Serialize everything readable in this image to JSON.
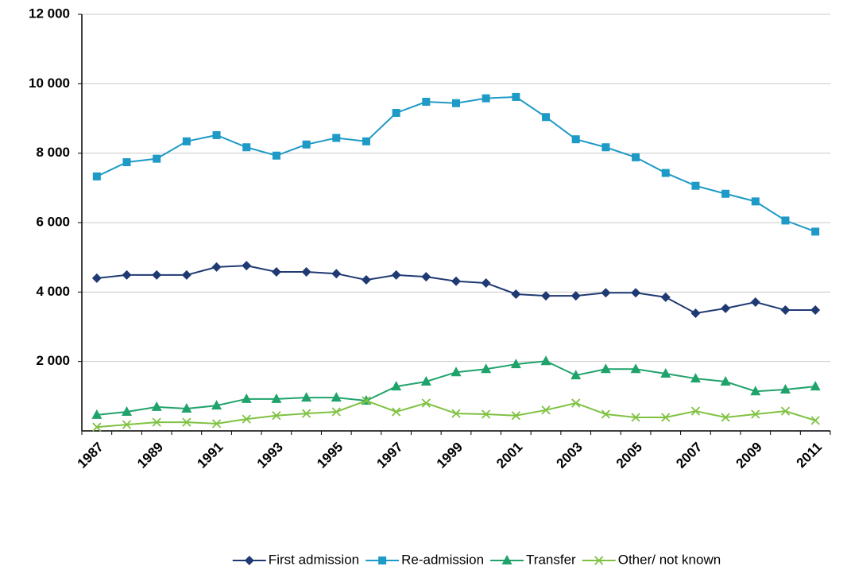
{
  "chart_data": {
    "type": "line",
    "categories": [
      "1987",
      null,
      "1989",
      null,
      "1991",
      null,
      "1993",
      null,
      "1995",
      null,
      "1997",
      null,
      "1999",
      null,
      "2001",
      null,
      "2003",
      null,
      "2005",
      null,
      "2007",
      null,
      "2009",
      null,
      "2011"
    ],
    "ylim": [
      0,
      12000
    ],
    "yticks": [
      {
        "value": 2000,
        "label": "2 000"
      },
      {
        "value": 4000,
        "label": "4 000"
      },
      {
        "value": 6000,
        "label": "6 000"
      },
      {
        "value": 8000,
        "label": "8 000"
      },
      {
        "value": 10000,
        "label": "10 000"
      },
      {
        "value": 12000,
        "label": "12 000"
      }
    ],
    "grid": true,
    "legend": "bottom",
    "series": [
      {
        "name": "First admission",
        "color": "#1f3a73",
        "marker": "diamond",
        "values": [
          4400,
          4490,
          4490,
          4490,
          4720,
          4760,
          4580,
          4580,
          4530,
          4350,
          4490,
          4440,
          4310,
          4260,
          3940,
          3890,
          3890,
          3980,
          3980,
          3850,
          3390,
          3530,
          3710,
          3480,
          3480
        ]
      },
      {
        "name": "Re-admission",
        "color": "#1e9ac6",
        "marker": "square",
        "values": [
          7330,
          7740,
          7840,
          8340,
          8520,
          8170,
          7930,
          8250,
          8440,
          8340,
          9160,
          9480,
          9440,
          9580,
          9620,
          9040,
          8400,
          8170,
          7880,
          7430,
          7060,
          6830,
          6610,
          6060,
          5740
        ]
      },
      {
        "name": "Transfer",
        "color": "#1fa36b",
        "marker": "triangle",
        "values": [
          460,
          550,
          690,
          640,
          730,
          920,
          920,
          960,
          960,
          870,
          1280,
          1420,
          1690,
          1780,
          1920,
          2010,
          1600,
          1780,
          1780,
          1650,
          1510,
          1420,
          1140,
          1190,
          1280
        ]
      },
      {
        "name": "Other/ not known",
        "color": "#7fc241",
        "marker": "x",
        "values": [
          110,
          180,
          250,
          250,
          210,
          340,
          440,
          500,
          550,
          870,
          550,
          800,
          500,
          480,
          440,
          600,
          800,
          480,
          390,
          390,
          570,
          390,
          480,
          570,
          300
        ]
      }
    ]
  }
}
